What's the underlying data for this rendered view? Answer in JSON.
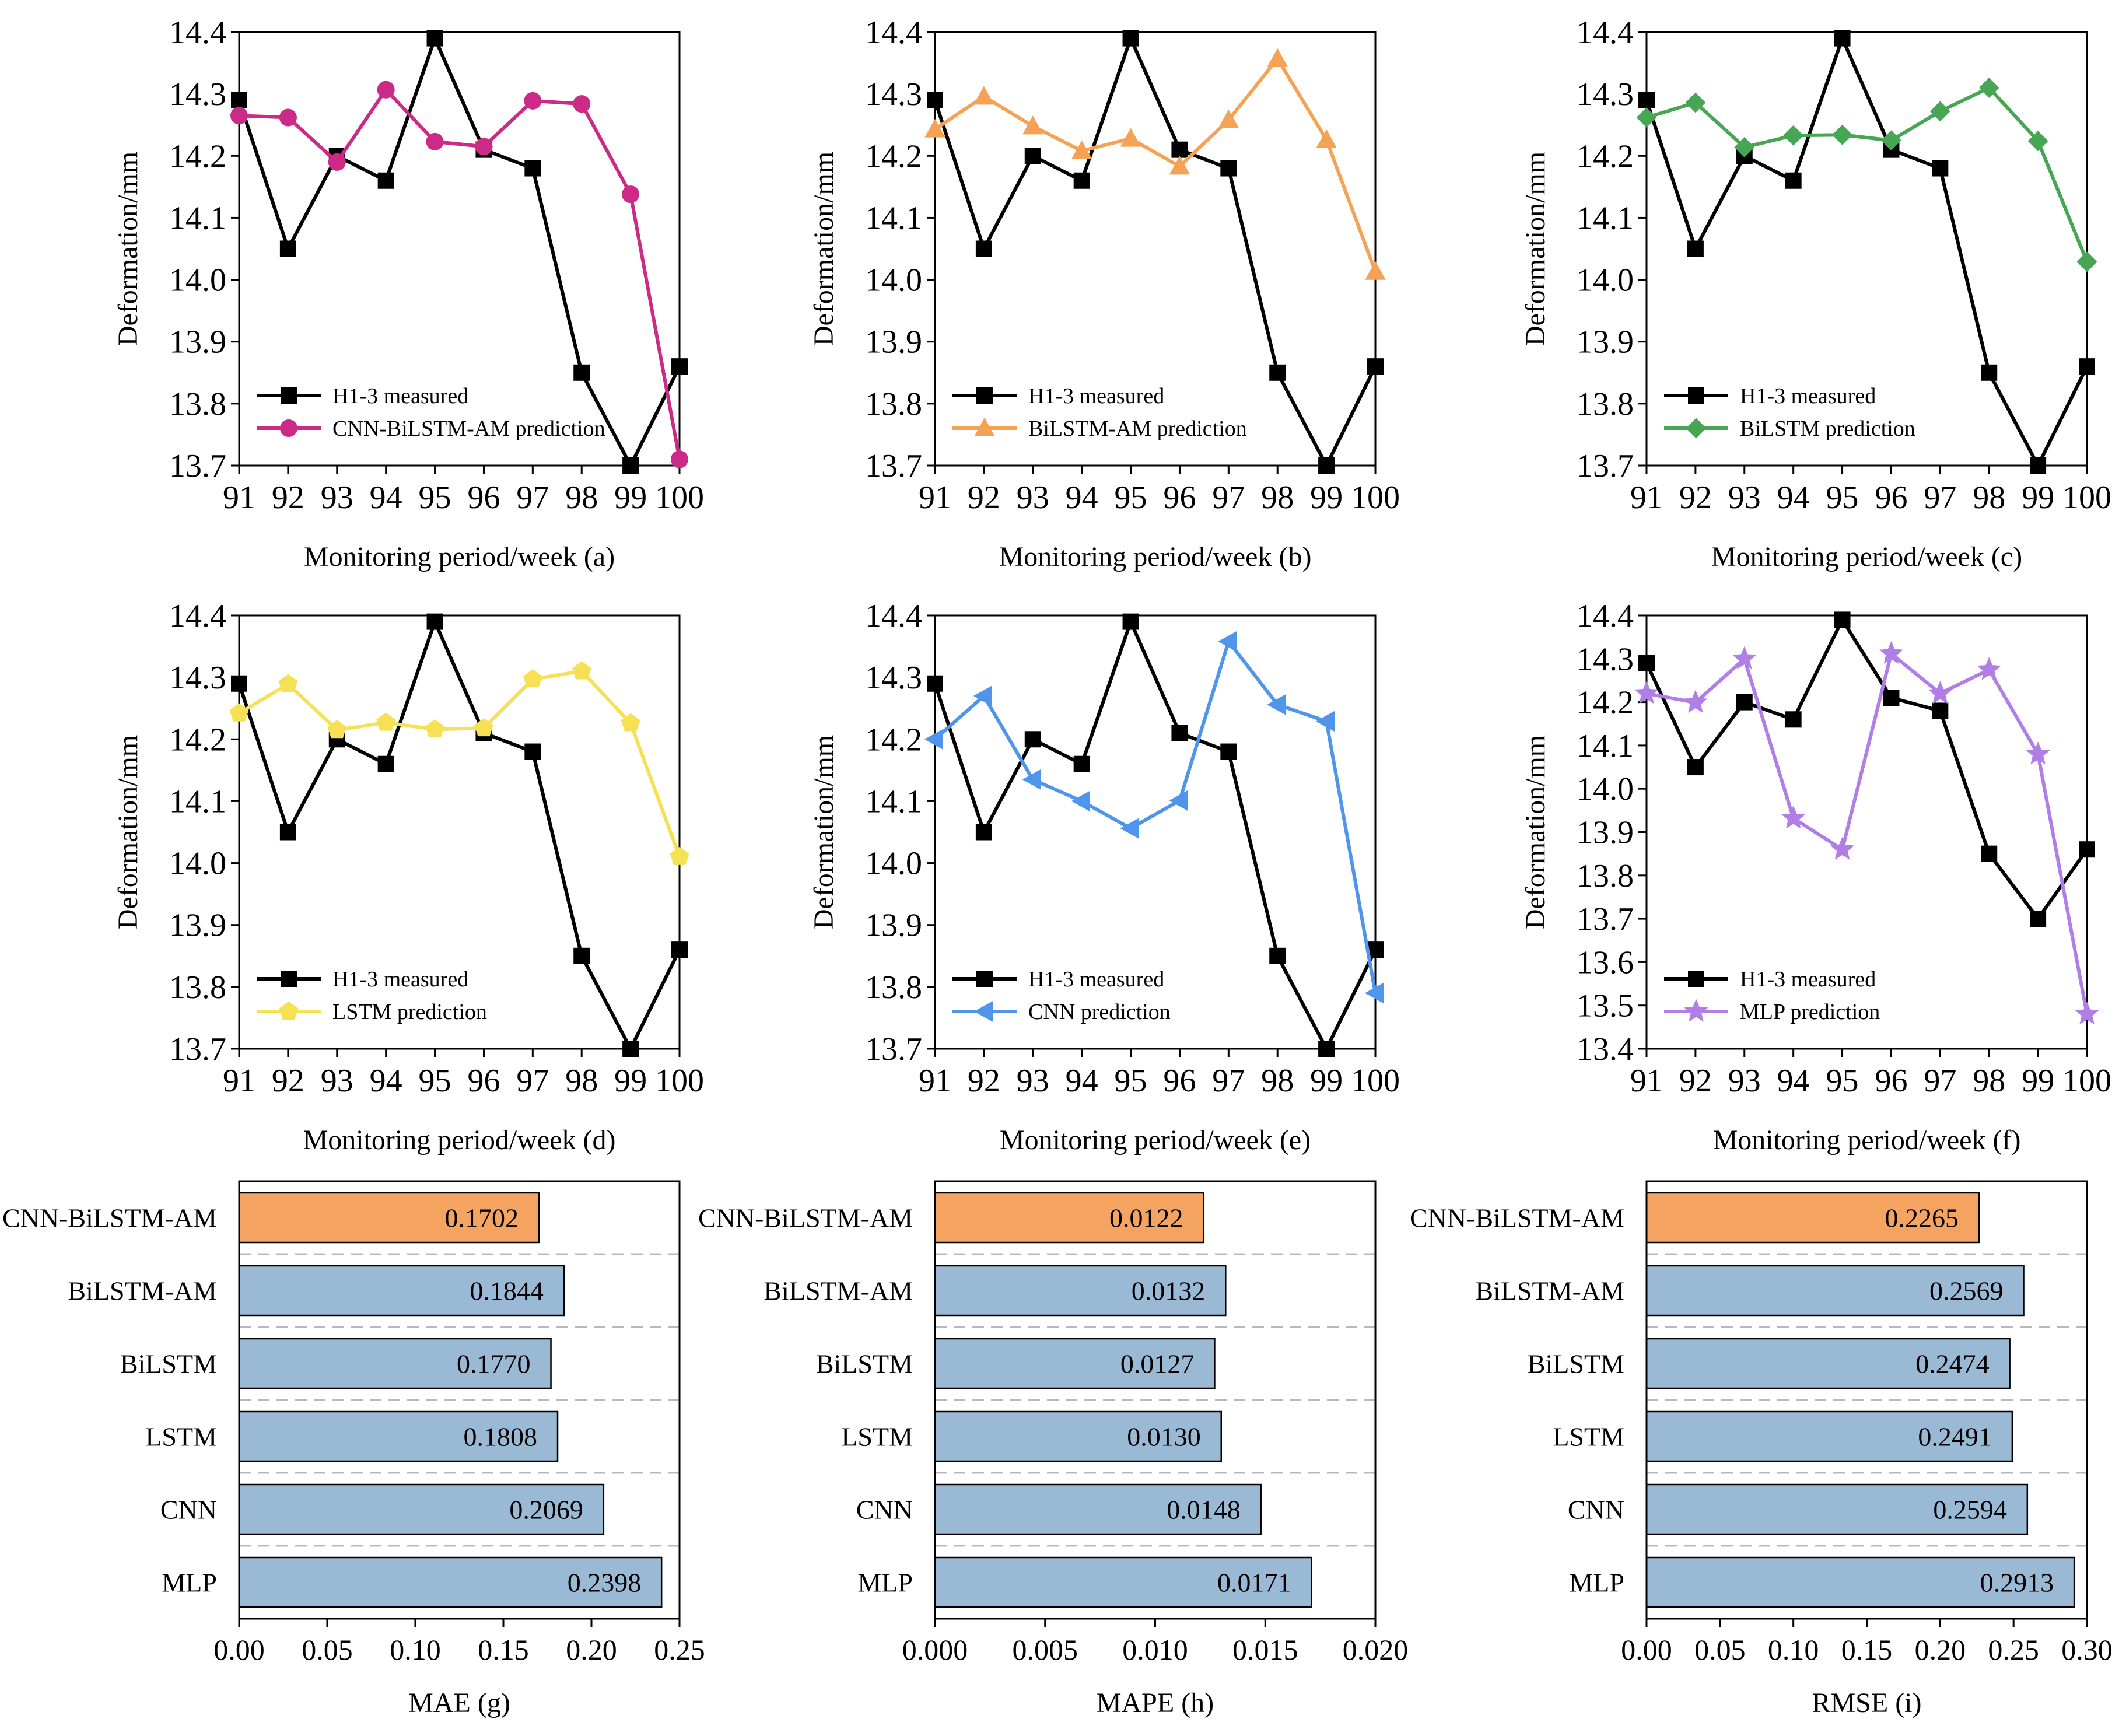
{
  "chart_data": [
    {
      "panel": "a",
      "type": "line",
      "categories": [
        "91",
        "92",
        "93",
        "94",
        "95",
        "96",
        "97",
        "98",
        "99",
        "100"
      ],
      "xlabel": "Monitoring period/week (a)",
      "ylabel": "Deformation/mm",
      "ylim": [
        13.7,
        14.4
      ],
      "yticks": [
        "13.7",
        "13.8",
        "13.9",
        "14.0",
        "14.1",
        "14.2",
        "14.3",
        "14.4"
      ],
      "series": [
        {
          "name": "H1-3 measured",
          "color": "#000000",
          "marker": "square",
          "values": [
            14.29,
            14.05,
            14.2,
            14.16,
            14.39,
            14.21,
            14.18,
            13.85,
            13.7,
            13.86
          ]
        },
        {
          "name": "CNN-BiLSTM-AM prediction",
          "color": "#cc2a87",
          "marker": "circle",
          "values": [
            14.265,
            14.262,
            14.19,
            14.307,
            14.223,
            14.215,
            14.289,
            14.284,
            14.138,
            13.71
          ]
        }
      ]
    },
    {
      "panel": "b",
      "type": "line",
      "categories": [
        "91",
        "92",
        "93",
        "94",
        "95",
        "96",
        "97",
        "98",
        "99",
        "100"
      ],
      "xlabel": "Monitoring period/week (b)",
      "ylabel": "Deformation/mm",
      "ylim": [
        13.7,
        14.4
      ],
      "yticks": [
        "13.7",
        "13.8",
        "13.9",
        "14.0",
        "14.1",
        "14.2",
        "14.3",
        "14.4"
      ],
      "series": [
        {
          "name": "H1-3 measured",
          "color": "#000000",
          "marker": "square",
          "values": [
            14.29,
            14.05,
            14.2,
            14.16,
            14.39,
            14.21,
            14.18,
            13.85,
            13.7,
            13.86
          ]
        },
        {
          "name": "BiLSTM-AM prediction",
          "color": "#f5a255",
          "marker": "triangle-up",
          "values": [
            14.243,
            14.296,
            14.248,
            14.208,
            14.228,
            14.183,
            14.258,
            14.357,
            14.226,
            14.013
          ]
        }
      ]
    },
    {
      "panel": "c",
      "type": "line",
      "categories": [
        "91",
        "92",
        "93",
        "94",
        "95",
        "96",
        "97",
        "98",
        "99",
        "100"
      ],
      "xlabel": "Monitoring period/week (c)",
      "ylabel": "Deformation/mm",
      "ylim": [
        13.7,
        14.4
      ],
      "yticks": [
        "13.7",
        "13.8",
        "13.9",
        "14.0",
        "14.1",
        "14.2",
        "14.3",
        "14.4"
      ],
      "series": [
        {
          "name": "H1-3 measured",
          "color": "#000000",
          "marker": "square",
          "values": [
            14.29,
            14.05,
            14.2,
            14.16,
            14.39,
            14.21,
            14.18,
            13.85,
            13.7,
            13.86
          ]
        },
        {
          "name": "BiLSTM prediction",
          "color": "#47a653",
          "marker": "diamond",
          "values": [
            14.262,
            14.286,
            14.214,
            14.233,
            14.234,
            14.225,
            14.272,
            14.31,
            14.224,
            14.029
          ]
        }
      ]
    },
    {
      "panel": "d",
      "type": "line",
      "categories": [
        "91",
        "92",
        "93",
        "94",
        "95",
        "96",
        "97",
        "98",
        "99",
        "100"
      ],
      "xlabel": "Monitoring period/week (d)",
      "ylabel": "Deformation/mm",
      "ylim": [
        13.7,
        14.4
      ],
      "yticks": [
        "13.7",
        "13.8",
        "13.9",
        "14.0",
        "14.1",
        "14.2",
        "14.3",
        "14.4"
      ],
      "series": [
        {
          "name": "H1-3 measured",
          "color": "#000000",
          "marker": "square",
          "values": [
            14.29,
            14.05,
            14.2,
            14.16,
            14.39,
            14.21,
            14.18,
            13.85,
            13.7,
            13.86
          ]
        },
        {
          "name": "LSTM prediction",
          "color": "#f6e154",
          "marker": "pentagon",
          "values": [
            14.242,
            14.289,
            14.215,
            14.227,
            14.216,
            14.218,
            14.297,
            14.31,
            14.226,
            14.01
          ]
        }
      ]
    },
    {
      "panel": "e",
      "type": "line",
      "categories": [
        "91",
        "92",
        "93",
        "94",
        "95",
        "96",
        "97",
        "98",
        "99",
        "100"
      ],
      "xlabel": "Monitoring period/week (e)",
      "ylabel": "Deformation/mm",
      "ylim": [
        13.7,
        14.4
      ],
      "yticks": [
        "13.7",
        "13.8",
        "13.9",
        "14.0",
        "14.1",
        "14.2",
        "14.3",
        "14.4"
      ],
      "series": [
        {
          "name": "H1-3 measured",
          "color": "#000000",
          "marker": "square",
          "values": [
            14.29,
            14.05,
            14.2,
            14.16,
            14.39,
            14.21,
            14.18,
            13.85,
            13.7,
            13.86
          ]
        },
        {
          "name": "CNN prediction",
          "color": "#4f95eb",
          "marker": "triangle-left",
          "values": [
            14.2,
            14.27,
            14.135,
            14.1,
            14.056,
            14.101,
            14.358,
            14.256,
            14.229,
            13.79
          ]
        }
      ]
    },
    {
      "panel": "f",
      "type": "line",
      "categories": [
        "91",
        "92",
        "93",
        "94",
        "95",
        "96",
        "97",
        "98",
        "99",
        "100"
      ],
      "xlabel": "Monitoring period/week (f)",
      "ylabel": "Deformation/mm",
      "ylim": [
        13.4,
        14.4
      ],
      "yticks": [
        "13.4",
        "13.5",
        "13.6",
        "13.7",
        "13.8",
        "13.9",
        "14.0",
        "14.1",
        "14.2",
        "14.3",
        "14.4"
      ],
      "series": [
        {
          "name": "H1-3 measured",
          "color": "#000000",
          "marker": "square",
          "values": [
            14.29,
            14.05,
            14.2,
            14.16,
            14.39,
            14.21,
            14.18,
            13.85,
            13.7,
            13.86
          ]
        },
        {
          "name": "MLP prediction",
          "color": "#b07ee6",
          "marker": "star",
          "values": [
            14.22,
            14.199,
            14.3,
            13.932,
            13.86,
            14.312,
            14.22,
            14.275,
            14.08,
            13.48
          ]
        }
      ]
    },
    {
      "panel": "g",
      "type": "bar",
      "orientation": "horizontal",
      "categories": [
        "CNN-BiLSTM-AM",
        "BiLSTM-AM",
        "BiLSTM",
        "LSTM",
        "CNN",
        "MLP"
      ],
      "values": [
        0.1702,
        0.1844,
        0.177,
        0.1808,
        0.2069,
        0.2398
      ],
      "labels": [
        "0.1702",
        "0.1844",
        "0.1770",
        "0.1808",
        "0.2069",
        "0.2398"
      ],
      "xlabel": "MAE (g)",
      "xlim": [
        0,
        0.25
      ],
      "xticks": [
        "0.00",
        "0.05",
        "0.10",
        "0.15",
        "0.20",
        "0.25"
      ],
      "highlight_color": "#f4a460",
      "bar_color": "#9ab9d4"
    },
    {
      "panel": "h",
      "type": "bar",
      "orientation": "horizontal",
      "categories": [
        "CNN-BiLSTM-AM",
        "BiLSTM-AM",
        "BiLSTM",
        "LSTM",
        "CNN",
        "MLP"
      ],
      "values": [
        0.0122,
        0.0132,
        0.0127,
        0.013,
        0.0148,
        0.0171
      ],
      "labels": [
        "0.0122",
        "0.0132",
        "0.0127",
        "0.0130",
        "0.0148",
        "0.0171"
      ],
      "xlabel": "MAPE (h)",
      "xlim": [
        0,
        0.02
      ],
      "xticks": [
        "0.000",
        "0.005",
        "0.010",
        "0.015",
        "0.020"
      ],
      "highlight_color": "#f4a460",
      "bar_color": "#9ab9d4"
    },
    {
      "panel": "i",
      "type": "bar",
      "orientation": "horizontal",
      "categories": [
        "CNN-BiLSTM-AM",
        "BiLSTM-AM",
        "BiLSTM",
        "LSTM",
        "CNN",
        "MLP"
      ],
      "values": [
        0.2265,
        0.2569,
        0.2474,
        0.2491,
        0.2594,
        0.2913
      ],
      "labels": [
        "0.2265",
        "0.2569",
        "0.2474",
        "0.2491",
        "0.2594",
        "0.2913"
      ],
      "xlabel": "RMSE (i)",
      "xlim": [
        0,
        0.3
      ],
      "xticks": [
        "0.00",
        "0.05",
        "0.10",
        "0.15",
        "0.20",
        "0.25",
        "0.30"
      ],
      "highlight_color": "#f4a460",
      "bar_color": "#9ab9d4"
    }
  ]
}
